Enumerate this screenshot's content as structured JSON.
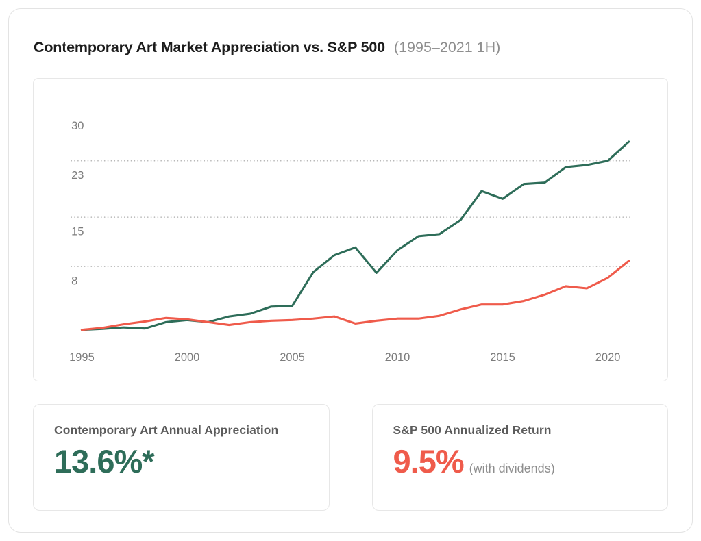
{
  "header": {
    "title_bold": "Contemporary Art Market Appreciation vs. S&P 500",
    "title_light": "(1995–2021 1H)"
  },
  "chart_data": {
    "type": "line",
    "title": "Contemporary Art Market Appreciation vs. S&P 500 (1995–2021 1H)",
    "xlabel": "",
    "ylabel": "",
    "grid": "dotted horizontal",
    "legend": "none",
    "x_range": [
      1994.5,
      2021.1
    ],
    "y_range": [
      0,
      33
    ],
    "gridlines": [
      25,
      17,
      10
    ],
    "y_ticks": [
      {
        "label": "30",
        "value": 30
      },
      {
        "label": "23",
        "value": 23
      },
      {
        "label": "15",
        "value": 15
      },
      {
        "label": "8",
        "value": 8
      }
    ],
    "x_ticks": [
      {
        "label": "1995",
        "value": 1995
      },
      {
        "label": "2000",
        "value": 2000
      },
      {
        "label": "2005",
        "value": 2005
      },
      {
        "label": "2010",
        "value": 2010
      },
      {
        "label": "2015",
        "value": 2015
      },
      {
        "label": "2020",
        "value": 2020
      }
    ],
    "x": [
      1995,
      1996,
      1997,
      1998,
      1999,
      2000,
      2001,
      2002,
      2003,
      2004,
      2005,
      2006,
      2007,
      2008,
      2009,
      2010,
      2011,
      2012,
      2013,
      2014,
      2015,
      2016,
      2017,
      2018,
      2019,
      2020,
      2021
    ],
    "series": [
      {
        "id": "contemporary-art",
        "name": "Contemporary Art",
        "color": "#2E6D59",
        "values": [
          1.0,
          1.15,
          1.35,
          1.2,
          2.1,
          2.4,
          2.1,
          2.9,
          3.3,
          4.3,
          4.4,
          9.2,
          11.6,
          12.7,
          9.1,
          12.3,
          14.3,
          14.6,
          16.6,
          20.7,
          19.6,
          21.7,
          21.9,
          24.1,
          24.4,
          25.0,
          27.7
        ]
      },
      {
        "id": "sp500",
        "name": "S&P 500",
        "color": "#EF5B4B",
        "values": [
          1.0,
          1.3,
          1.8,
          2.2,
          2.7,
          2.5,
          2.1,
          1.7,
          2.1,
          2.3,
          2.4,
          2.6,
          2.9,
          1.9,
          2.3,
          2.6,
          2.6,
          3.0,
          3.9,
          4.6,
          4.6,
          5.1,
          6.0,
          7.2,
          6.9,
          8.4,
          10.8
        ]
      }
    ]
  },
  "stats": [
    {
      "label": "Contemporary Art Annual Appreciation",
      "value": "13.6%*",
      "suffix": "",
      "color": "#2E6D59"
    },
    {
      "label": "S&P 500 Annualized Return",
      "value": "9.5%",
      "suffix": "(with dividends)",
      "color": "#EF5B4B"
    }
  ]
}
